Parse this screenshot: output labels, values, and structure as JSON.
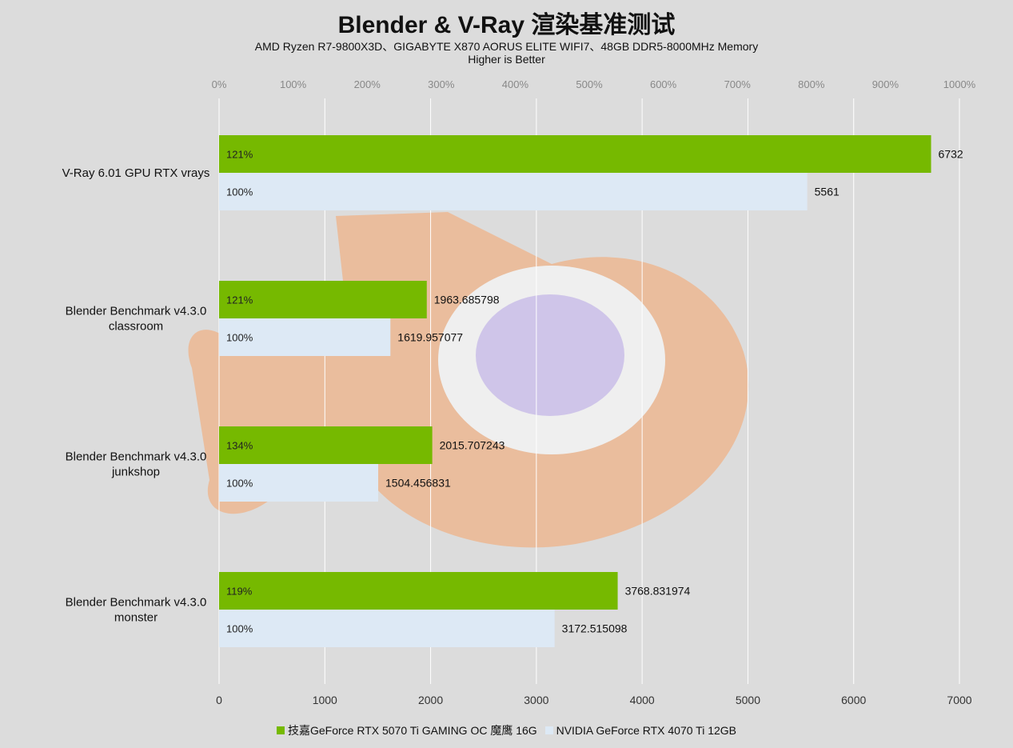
{
  "chart_data": {
    "type": "bar",
    "orientation": "horizontal",
    "title": "Blender & V-Ray 渲染基准测试",
    "subtitle": "AMD Ryzen R7-9800X3D、GIGABYTE X870 AORUS ELITE WIFI7、48GB DDR5-8000MHz Memory",
    "subtitle2": "Higher is Better",
    "categories": [
      "V-Ray 6.01 GPU RTX vrays",
      "Blender Benchmark v4.3.0 classroom",
      "Blender Benchmark v4.3.0 junkshop",
      "Blender Benchmark v4.3.0 monster"
    ],
    "category_lines": [
      [
        "V-Ray 6.01 GPU RTX vrays"
      ],
      [
        "Blender Benchmark v4.3.0",
        "classroom"
      ],
      [
        "Blender Benchmark v4.3.0",
        "junkshop"
      ],
      [
        "Blender Benchmark v4.3.0",
        "monster"
      ]
    ],
    "series": [
      {
        "name": "技嘉GeForce RTX 5070 Ti GAMING OC 魔鹰 16G",
        "color": "#76b900",
        "values": [
          6732,
          1963.685798,
          2015.707243,
          3768.831974
        ],
        "value_labels": [
          "6732",
          "1963.685798",
          "2015.707243",
          "3768.831974"
        ],
        "percent_labels": [
          "121%",
          "121%",
          "134%",
          "119%"
        ]
      },
      {
        "name": "NVIDIA GeForce RTX 4070 Ti 12GB",
        "color": "#dde9f5",
        "values": [
          5561,
          1619.957077,
          1504.456831,
          3172.515098
        ],
        "value_labels": [
          "5561",
          "1619.957077",
          "1504.456831",
          "3172.515098"
        ],
        "percent_labels": [
          "100%",
          "100%",
          "100%",
          "100%"
        ]
      }
    ],
    "xlim": [
      0,
      7000
    ],
    "x_ticks": [
      "0",
      "1000",
      "2000",
      "3000",
      "4000",
      "5000",
      "6000",
      "7000"
    ],
    "top_axis_ticks": [
      "0%",
      "100%",
      "200%",
      "300%",
      "400%",
      "500%",
      "600%",
      "700%",
      "800%",
      "900%",
      "1000%"
    ],
    "grid": true,
    "legend_position": "bottom"
  }
}
